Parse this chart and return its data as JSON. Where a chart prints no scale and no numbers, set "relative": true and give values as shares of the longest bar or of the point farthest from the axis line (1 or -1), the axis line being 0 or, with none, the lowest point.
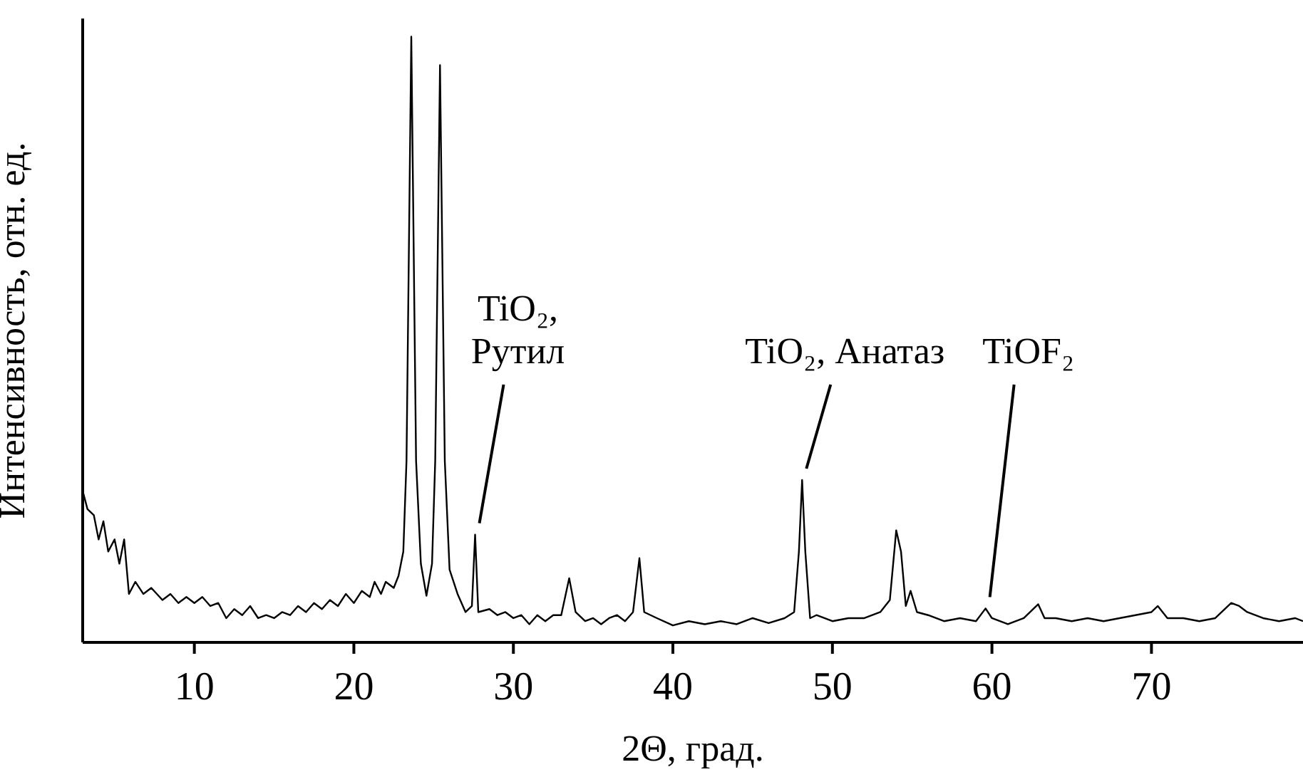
{
  "chart_data": {
    "type": "line",
    "xlabel": "2Θ, град.",
    "ylabel": "Интенсивность, отн. ед.",
    "relative": true,
    "color": "#000000",
    "xlim": [
      3,
      79.5
    ],
    "xticks": [
      10,
      20,
      30,
      40,
      50,
      60,
      70
    ],
    "x": [
      3,
      3.3,
      3.7,
      4.0,
      4.3,
      4.6,
      5.0,
      5.3,
      5.6,
      5.9,
      6.3,
      6.8,
      7.3,
      8,
      8.5,
      9,
      9.5,
      10,
      10.5,
      11,
      11.5,
      12,
      12.5,
      13,
      13.5,
      14,
      14.5,
      15,
      15.5,
      16,
      16.5,
      17,
      17.5,
      18,
      18.5,
      19,
      19.5,
      20,
      20.5,
      21,
      21.3,
      21.7,
      22,
      22.5,
      22.8,
      23.1,
      23.3,
      23.6,
      23.9,
      24.2,
      24.55,
      24.9,
      25.1,
      25.4,
      25.7,
      26.0,
      26.5,
      27,
      27.4,
      27.6,
      27.8,
      28.5,
      29,
      29.5,
      30,
      30.5,
      31,
      31.5,
      32,
      32.5,
      33,
      33.5,
      33.9,
      34.5,
      35,
      35.5,
      36,
      36.5,
      37,
      37.5,
      37.9,
      38.2,
      38.6,
      39,
      40,
      41,
      42,
      43,
      44,
      45,
      46,
      47,
      47.6,
      47.9,
      48.1,
      48.3,
      48.6,
      49,
      50,
      51,
      52,
      53,
      53.6,
      54.0,
      54.3,
      54.6,
      54.9,
      55.3,
      56,
      57,
      58,
      59,
      59.6,
      60,
      61,
      62,
      62.9,
      63.3,
      64,
      65,
      66,
      67,
      68,
      69,
      70,
      70.4,
      71,
      72,
      73,
      74,
      75,
      75.5,
      76,
      77,
      78,
      79,
      79.5
    ],
    "values": [
      0.25,
      0.22,
      0.21,
      0.17,
      0.2,
      0.15,
      0.17,
      0.13,
      0.17,
      0.08,
      0.1,
      0.08,
      0.09,
      0.07,
      0.08,
      0.065,
      0.075,
      0.065,
      0.075,
      0.06,
      0.065,
      0.04,
      0.055,
      0.045,
      0.06,
      0.04,
      0.045,
      0.04,
      0.05,
      0.045,
      0.06,
      0.05,
      0.065,
      0.055,
      0.07,
      0.06,
      0.08,
      0.065,
      0.085,
      0.075,
      0.1,
      0.08,
      0.1,
      0.09,
      0.11,
      0.15,
      0.3,
      1,
      0.3,
      0.13,
      0.077,
      0.13,
      0.3,
      0.953,
      0.3,
      0.12,
      0.08,
      0.05,
      0.06,
      0.178,
      0.05,
      0.055,
      0.045,
      0.05,
      0.04,
      0.045,
      0.03,
      0.045,
      0.035,
      0.045,
      0.045,
      0.106,
      0.05,
      0.035,
      0.04,
      0.03,
      0.04,
      0.045,
      0.035,
      0.05,
      0.139,
      0.05,
      0.045,
      0.04,
      0.028,
      0.035,
      0.03,
      0.035,
      0.03,
      0.04,
      0.032,
      0.04,
      0.05,
      0.15,
      0.268,
      0.15,
      0.04,
      0.045,
      0.035,
      0.04,
      0.04,
      0.05,
      0.07,
      0.185,
      0.15,
      0.06,
      0.085,
      0.05,
      0.045,
      0.035,
      0.04,
      0.035,
      0.056,
      0.04,
      0.03,
      0.04,
      0.063,
      0.04,
      0.04,
      0.035,
      0.04,
      0.035,
      0.04,
      0.045,
      0.05,
      0.06,
      0.04,
      0.04,
      0.035,
      0.04,
      0.065,
      0.06,
      0.05,
      0.04,
      0.035,
      0.04,
      0.035
    ],
    "annotations": [
      {
        "text": "TiO₂,\nРутил",
        "x": 27.6,
        "y": 0.178
      },
      {
        "text": "TiO₂, Анатаз",
        "x": 48.1,
        "y": 0.268
      },
      {
        "text": "TiOF₂",
        "x": 59.6,
        "y": 0.056
      }
    ]
  }
}
